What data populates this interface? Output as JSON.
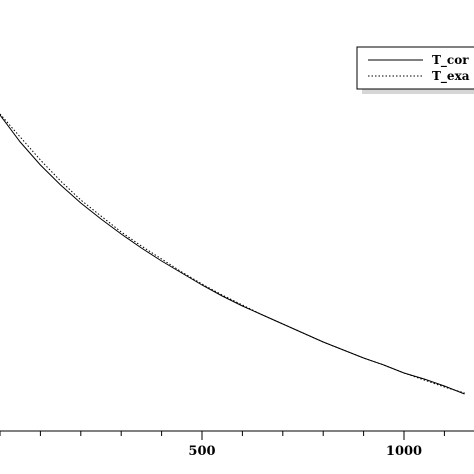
{
  "chart_data": {
    "type": "line",
    "title": "",
    "xlabel": "",
    "ylabel": "",
    "xlim": [
      0,
      1150
    ],
    "x_tick_labels": [
      "500",
      "1000"
    ],
    "x_ticks": [
      500,
      1000
    ],
    "x_minor_step": 100,
    "grid": false,
    "legend_position": "top-right",
    "legend": [
      "T_cor",
      "T_exa"
    ],
    "series": [
      {
        "name": "T_cor",
        "style": "solid",
        "x": [
          0,
          50,
          100,
          150,
          200,
          250,
          300,
          350,
          400,
          450,
          500,
          550,
          600,
          650,
          700,
          750,
          800,
          850,
          900,
          950,
          1000,
          1050,
          1100,
          1150
        ],
        "y": [
          115,
          142,
          165,
          185,
          203,
          219,
          234,
          248,
          261,
          273,
          285,
          296,
          306,
          315,
          324,
          333,
          342,
          350,
          358,
          365,
          373,
          379,
          386,
          394
        ]
      },
      {
        "name": "T_exa",
        "style": "dotted",
        "x": [
          0,
          50,
          100,
          150,
          200,
          250,
          300,
          350,
          400,
          450,
          500,
          550,
          600,
          650,
          700,
          750,
          800,
          850,
          900,
          950,
          1000,
          1050,
          1100,
          1150
        ],
        "y": [
          114,
          137,
          160,
          181,
          200,
          216,
          232,
          246,
          259,
          272,
          284,
          295,
          305,
          315,
          324,
          333,
          342,
          350,
          358,
          365,
          373,
          380,
          387,
          393
        ]
      }
    ]
  }
}
